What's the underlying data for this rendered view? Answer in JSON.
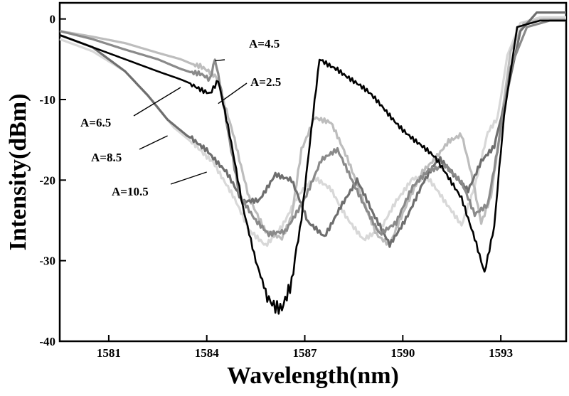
{
  "chart_data": {
    "type": "line",
    "title": "",
    "xlabel": "Wavelength(nm)",
    "ylabel": "Intensity(dBm)",
    "xlim": [
      1579.5,
      1595.0
    ],
    "ylim": [
      -40,
      2
    ],
    "xticks": [
      1581,
      1584,
      1587,
      1590,
      1593
    ],
    "xtick_labels": [
      "1581",
      "1584",
      "1587",
      "1590",
      "1593"
    ],
    "yticks": [
      0,
      -10,
      -20,
      -30,
      -40
    ],
    "ytick_labels": [
      "0",
      "-10",
      "-20",
      "-30",
      "-40"
    ],
    "grid": false,
    "legend": "none",
    "series": [
      {
        "name": "A=4.5",
        "color": "#8a8a8a",
        "x": [
          1579.5,
          1580.5,
          1581.5,
          1582.5,
          1583.2,
          1583.8,
          1584.1,
          1584.25,
          1584.4,
          1584.7,
          1585.0,
          1585.5,
          1585.9,
          1586.4,
          1587.0,
          1587.5,
          1588.0,
          1588.5,
          1588.9,
          1589.3,
          1589.8,
          1590.3,
          1590.8,
          1591.3,
          1591.8,
          1592.2,
          1592.6,
          1592.9,
          1593.3,
          1593.8,
          1594.5,
          1595.0
        ],
        "y": [
          -1.5,
          -2.5,
          -3.8,
          -5.0,
          -6.2,
          -7.0,
          -7.8,
          -5.2,
          -8.0,
          -15.0,
          -21.5,
          -25.0,
          -27.0,
          -26.5,
          -22.0,
          -17.5,
          -16.5,
          -20.5,
          -23.5,
          -26.5,
          -25.5,
          -21.0,
          -18.5,
          -18.0,
          -20.5,
          -24.5,
          -23.0,
          -16.0,
          -6.0,
          -1.0,
          -0.2,
          -0.2
        ]
      },
      {
        "name": "A=2.5",
        "color": "#000000",
        "x": [
          1579.5,
          1580.5,
          1581.5,
          1582.5,
          1583.2,
          1583.8,
          1584.1,
          1584.35,
          1584.7,
          1585.1,
          1585.5,
          1585.8,
          1586.1,
          1586.3,
          1586.6,
          1586.9,
          1587.2,
          1587.45,
          1588.0,
          1589.0,
          1590.0,
          1591.0,
          1591.8,
          1592.2,
          1592.5,
          1592.8,
          1593.1,
          1593.5,
          1594.2,
          1595.0
        ],
        "y": [
          -2.0,
          -3.5,
          -5.0,
          -6.5,
          -7.5,
          -8.5,
          -9.0,
          -7.5,
          -14.5,
          -23.5,
          -30.0,
          -33.5,
          -35.0,
          -35.5,
          -33.0,
          -25.0,
          -14.0,
          -5.0,
          -6.0,
          -9.5,
          -13.5,
          -17.5,
          -22.0,
          -27.0,
          -31.5,
          -26.0,
          -12.0,
          -1.0,
          -0.2,
          -0.2
        ]
      },
      {
        "name": "A=6.5",
        "color": "#bdbdbd",
        "x": [
          1579.5,
          1580.5,
          1581.5,
          1582.5,
          1583.2,
          1583.8,
          1584.3,
          1584.8,
          1585.3,
          1585.8,
          1586.3,
          1586.6,
          1586.9,
          1587.3,
          1587.8,
          1588.3,
          1588.8,
          1589.2,
          1589.6,
          1590.1,
          1590.6,
          1591.0,
          1591.4,
          1591.8,
          1592.1,
          1592.4,
          1592.7,
          1593.0,
          1593.3,
          1593.7,
          1594.3,
          1595.0
        ],
        "y": [
          -1.5,
          -2.2,
          -3.0,
          -4.2,
          -5.0,
          -6.0,
          -7.5,
          -14.0,
          -22.0,
          -26.5,
          -27.5,
          -24.5,
          -16.0,
          -12.0,
          -13.0,
          -17.5,
          -22.5,
          -26.5,
          -28.0,
          -23.5,
          -19.0,
          -17.0,
          -15.0,
          -14.5,
          -19.5,
          -25.5,
          -22.0,
          -13.0,
          -4.0,
          -0.5,
          0.0,
          0.0
        ]
      },
      {
        "name": "A=8.5",
        "color": "#d8d8d8",
        "x": [
          1579.5,
          1580.5,
          1581.5,
          1582.3,
          1583.0,
          1583.6,
          1584.2,
          1584.8,
          1585.3,
          1585.8,
          1586.3,
          1586.8,
          1587.3,
          1587.8,
          1588.3,
          1588.8,
          1589.3,
          1589.8,
          1590.3,
          1590.8,
          1591.3,
          1591.8,
          1592.2,
          1592.6,
          1592.9,
          1593.2,
          1593.6,
          1594.2,
          1595.0
        ],
        "y": [
          -2.5,
          -4.0,
          -6.5,
          -10.0,
          -13.5,
          -15.5,
          -17.5,
          -22.0,
          -26.5,
          -28.0,
          -25.5,
          -22.0,
          -20.0,
          -21.0,
          -24.5,
          -27.5,
          -26.5,
          -22.5,
          -19.5,
          -20.0,
          -23.0,
          -25.5,
          -20.5,
          -14.0,
          -12.5,
          -4.5,
          -0.5,
          0.2,
          0.2
        ]
      },
      {
        "name": "A=10.5",
        "color": "#6e6e6e",
        "x": [
          1579.5,
          1580.5,
          1581.5,
          1582.2,
          1582.8,
          1583.4,
          1584.0,
          1584.6,
          1585.1,
          1585.6,
          1586.1,
          1586.6,
          1587.1,
          1587.6,
          1588.1,
          1588.6,
          1589.1,
          1589.6,
          1590.1,
          1590.6,
          1591.1,
          1591.6,
          1592.0,
          1592.4,
          1592.8,
          1593.2,
          1593.6,
          1594.1,
          1595.0
        ],
        "y": [
          -2.0,
          -3.5,
          -6.5,
          -9.5,
          -12.5,
          -14.5,
          -16.0,
          -19.0,
          -23.0,
          -22.5,
          -19.0,
          -20.0,
          -25.5,
          -27.0,
          -23.0,
          -20.0,
          -24.5,
          -28.0,
          -24.5,
          -20.5,
          -17.5,
          -19.5,
          -21.0,
          -17.5,
          -16.0,
          -9.0,
          -1.5,
          0.8,
          0.8
        ]
      }
    ],
    "annotations": [
      {
        "text": "A=4.5",
        "series": "A=4.5",
        "point": [
          1584.25,
          -5.2
        ]
      },
      {
        "text": "A=2.5",
        "series": "A=2.5",
        "point": [
          1584.35,
          -10.5
        ]
      },
      {
        "text": "A=6.5",
        "series": "A=6.5",
        "point": [
          1583.2,
          -8.5
        ]
      },
      {
        "text": "A=8.5",
        "series": "A=8.5",
        "point": [
          1582.8,
          -14.5
        ]
      },
      {
        "text": "A=10.5",
        "series": "A=10.5",
        "point": [
          1584.0,
          -19.0
        ]
      }
    ]
  }
}
